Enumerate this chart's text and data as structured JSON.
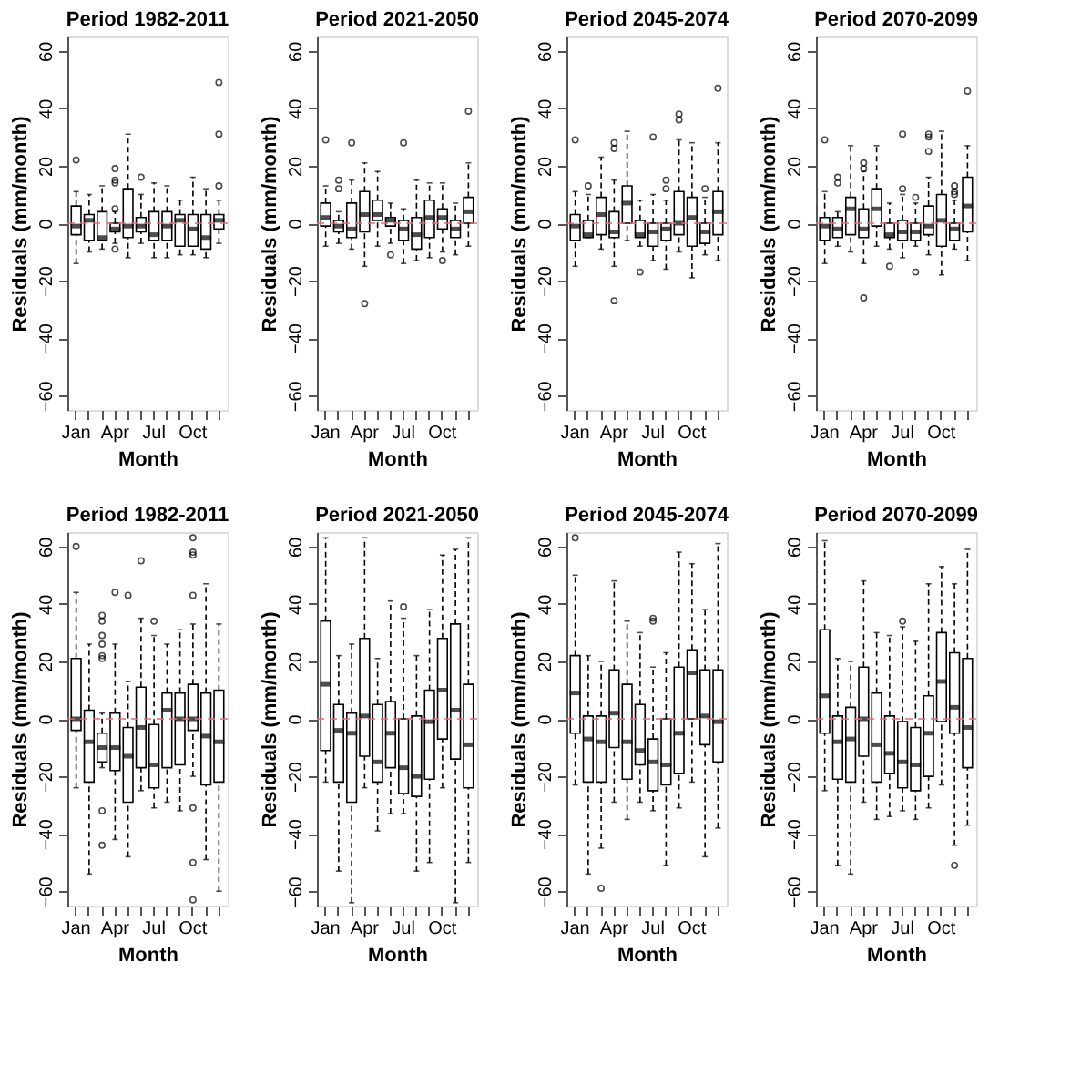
{
  "chart_data": [
    {
      "type": "box",
      "title": "Period 1982-2011",
      "xlabel": "Month",
      "ylabel": "Residuals (mm/month)",
      "categories": [
        "Jan",
        null,
        null,
        "Apr",
        null,
        null,
        "Jul",
        null,
        null,
        "Oct",
        null,
        null
      ],
      "ylim": [
        -65,
        65
      ],
      "yticks": [
        -60,
        -40,
        -20,
        0,
        20,
        40,
        60
      ],
      "ref_lines": [
        {
          "axis": "y",
          "value": 0,
          "color": "#e07070",
          "line_style": "dashed"
        }
      ],
      "boxes": [
        {
          "low": -14,
          "q1": -4,
          "median": -1,
          "q3": 6,
          "high": 11,
          "outliers": [
            22
          ]
        },
        {
          "low": -10,
          "q1": -6,
          "median": 1,
          "q3": 3,
          "high": 10
        },
        {
          "low": -9,
          "q1": -6,
          "median": -5,
          "q3": 4,
          "high": 13
        },
        {
          "low": -7,
          "q1": -3,
          "median": -2,
          "q3": 0,
          "high": 4,
          "outliers": [
            19,
            15,
            14,
            5,
            -9
          ]
        },
        {
          "low": -12,
          "q1": -5,
          "median": -1,
          "q3": 12,
          "high": 31
        },
        {
          "low": -7,
          "q1": -3,
          "median": -1,
          "q3": 2,
          "high": 10,
          "outliers": [
            16
          ]
        },
        {
          "low": -12,
          "q1": -6,
          "median": -4,
          "q3": 4,
          "high": 14
        },
        {
          "low": -12,
          "q1": -6,
          "median": -1,
          "q3": 4,
          "high": 13
        },
        {
          "low": -11,
          "q1": -8,
          "median": 1,
          "q3": 3,
          "high": 8
        },
        {
          "low": -11,
          "q1": -8,
          "median": -2,
          "q3": 3,
          "high": 16
        },
        {
          "low": -12,
          "q1": -9,
          "median": -5,
          "q3": 3,
          "high": 12
        },
        {
          "low": -7,
          "q1": -2,
          "median": 1,
          "q3": 3,
          "high": 8,
          "outliers": [
            49,
            31,
            13
          ]
        }
      ]
    },
    {
      "type": "box",
      "title": "Period 2021-2050",
      "xlabel": "Month",
      "ylabel": "Residuals (mm/month)",
      "categories": [
        "Jan",
        null,
        null,
        "Apr",
        null,
        null,
        "Jul",
        null,
        null,
        "Oct",
        null,
        null
      ],
      "ylim": [
        -65,
        65
      ],
      "yticks": [
        -60,
        -40,
        -20,
        0,
        20,
        40,
        60
      ],
      "ref_lines": [
        {
          "axis": "y",
          "value": 0,
          "color": "#e07070",
          "line_style": "dashed"
        }
      ],
      "boxes": [
        {
          "low": -8,
          "q1": -1,
          "median": 2,
          "q3": 7,
          "high": 13,
          "outliers": [
            29
          ]
        },
        {
          "low": -7,
          "q1": -3,
          "median": -1,
          "q3": 1,
          "high": 4,
          "outliers": [
            15,
            12
          ]
        },
        {
          "low": -9,
          "q1": -5,
          "median": -2,
          "q3": 7,
          "high": 15,
          "outliers": [
            28
          ]
        },
        {
          "low": -15,
          "q1": -3,
          "median": 3,
          "q3": 11,
          "high": 21,
          "outliers": [
            -28
          ]
        },
        {
          "low": -8,
          "q1": 1,
          "median": 3,
          "q3": 8,
          "high": 18
        },
        {
          "low": -7,
          "q1": -1,
          "median": 1,
          "q3": 2,
          "high": 7,
          "outliers": [
            -11
          ]
        },
        {
          "low": -14,
          "q1": -6,
          "median": -2,
          "q3": 1,
          "high": 5,
          "outliers": [
            28
          ]
        },
        {
          "low": -13,
          "q1": -9,
          "median": -4,
          "q3": 2,
          "high": 15
        },
        {
          "low": -12,
          "q1": -5,
          "median": 2,
          "q3": 8,
          "high": 14
        },
        {
          "low": -10,
          "q1": -2,
          "median": 2,
          "q3": 5,
          "high": 14,
          "outliers": [
            -13
          ]
        },
        {
          "low": -11,
          "q1": -5,
          "median": -2,
          "q3": 1,
          "high": 7
        },
        {
          "low": -8,
          "q1": 0,
          "median": 4,
          "q3": 9,
          "high": 21,
          "outliers": [
            39
          ]
        }
      ]
    },
    {
      "type": "box",
      "title": "Period 2045-2074",
      "xlabel": "Month",
      "ylabel": "Residuals (mm/month)",
      "categories": [
        "Jan",
        null,
        null,
        "Apr",
        null,
        null,
        "Jul",
        null,
        null,
        "Oct",
        null,
        null
      ],
      "ylim": [
        -65,
        65
      ],
      "yticks": [
        -60,
        -40,
        -20,
        0,
        20,
        40,
        60
      ],
      "ref_lines": [
        {
          "axis": "y",
          "value": 0,
          "color": "#e07070",
          "line_style": "dashed"
        }
      ],
      "boxes": [
        {
          "low": -15,
          "q1": -6,
          "median": -1,
          "q3": 3,
          "high": 11,
          "outliers": [
            29
          ]
        },
        {
          "low": -5,
          "q1": -5,
          "median": -4,
          "q3": 1,
          "high": 10,
          "outliers": [
            13
          ]
        },
        {
          "low": -9,
          "q1": -4,
          "median": 3,
          "q3": 9,
          "high": 23
        },
        {
          "low": -15,
          "q1": -5,
          "median": -3,
          "q3": 4,
          "high": 15,
          "outliers": [
            28,
            26,
            -27
          ]
        },
        {
          "low": -6,
          "q1": 0,
          "median": 7,
          "q3": 13,
          "high": 32
        },
        {
          "low": -8,
          "q1": -5,
          "median": -4,
          "q3": 1,
          "high": 8,
          "outliers": [
            -17
          ]
        },
        {
          "low": -13,
          "q1": -8,
          "median": -3,
          "q3": 0,
          "high": 10,
          "outliers": [
            30
          ]
        },
        {
          "low": -16,
          "q1": -6,
          "median": -2,
          "q3": 0,
          "high": 8,
          "outliers": [
            15,
            12
          ]
        },
        {
          "low": -10,
          "q1": -4,
          "median": 0,
          "q3": 11,
          "high": 29,
          "outliers": [
            38,
            36
          ]
        },
        {
          "low": -19,
          "q1": -8,
          "median": 2,
          "q3": 9,
          "high": 28
        },
        {
          "low": -11,
          "q1": -7,
          "median": -3,
          "q3": 0,
          "high": 9,
          "outliers": [
            12
          ]
        },
        {
          "low": -13,
          "q1": -4,
          "median": 4,
          "q3": 11,
          "high": 28,
          "outliers": [
            47
          ]
        }
      ]
    },
    {
      "type": "box",
      "title": "Period 2070-2099",
      "xlabel": "Month",
      "ylabel": "Residuals (mm/month)",
      "categories": [
        "Jan",
        null,
        null,
        "Apr",
        null,
        null,
        "Jul",
        null,
        null,
        "Oct",
        null,
        null
      ],
      "ylim": [
        -65,
        65
      ],
      "yticks": [
        -60,
        -40,
        -20,
        0,
        20,
        40,
        60
      ],
      "ref_lines": [
        {
          "axis": "y",
          "value": 0,
          "color": "#e07070",
          "line_style": "dashed"
        }
      ],
      "boxes": [
        {
          "low": -14,
          "q1": -6,
          "median": -1,
          "q3": 2,
          "high": 11,
          "outliers": [
            29
          ]
        },
        {
          "low": -8,
          "q1": -5,
          "median": -2,
          "q3": 2,
          "high": 4,
          "outliers": [
            16,
            14
          ]
        },
        {
          "low": -10,
          "q1": -4,
          "median": 5,
          "q3": 9,
          "high": 27
        },
        {
          "low": -14,
          "q1": -5,
          "median": -2,
          "q3": 5,
          "high": 18,
          "outliers": [
            21,
            19,
            -26
          ]
        },
        {
          "low": -8,
          "q1": -1,
          "median": 5,
          "q3": 12,
          "high": 27
        },
        {
          "low": -9,
          "q1": -5,
          "median": -4,
          "q3": 0,
          "high": 7,
          "outliers": [
            -15
          ]
        },
        {
          "low": -12,
          "q1": -6,
          "median": -3,
          "q3": 1,
          "high": 10,
          "outliers": [
            31,
            12
          ]
        },
        {
          "low": -8,
          "q1": -6,
          "median": -3,
          "q3": 0,
          "high": 7,
          "outliers": [
            9,
            -17
          ]
        },
        {
          "low": -11,
          "q1": -4,
          "median": -1,
          "q3": 6,
          "high": 16,
          "outliers": [
            31,
            30,
            25
          ]
        },
        {
          "low": -18,
          "q1": -8,
          "median": 1,
          "q3": 10,
          "high": 32
        },
        {
          "low": -9,
          "q1": -6,
          "median": -2,
          "q3": 0,
          "high": 8,
          "outliers": [
            13,
            11,
            10
          ]
        },
        {
          "low": -13,
          "q1": -3,
          "median": 6,
          "q3": 16,
          "high": 27,
          "outliers": [
            46
          ]
        }
      ]
    },
    {
      "type": "box",
      "title": "Period 1982-2011",
      "xlabel": "Month",
      "ylabel": "Residuals (mm/month)",
      "categories": [
        "Jan",
        null,
        null,
        "Apr",
        null,
        null,
        "Jul",
        null,
        null,
        "Oct",
        null,
        null
      ],
      "ylim": [
        -65,
        65
      ],
      "yticks": [
        -60,
        -40,
        -20,
        0,
        20,
        40,
        60
      ],
      "ref_lines": [
        {
          "axis": "y",
          "value": 0,
          "color": "#e07070",
          "line_style": "dashed"
        }
      ],
      "boxes": [
        {
          "low": -24,
          "q1": -4,
          "median": 0,
          "q3": 21,
          "high": 44,
          "outliers": [
            60
          ]
        },
        {
          "low": -54,
          "q1": -22,
          "median": -8,
          "q3": 3,
          "high": 26
        },
        {
          "low": -17,
          "q1": -15,
          "median": -10,
          "q3": -5,
          "high": 2,
          "outliers": [
            36,
            34,
            29,
            26,
            22,
            21,
            -32,
            -44
          ]
        },
        {
          "low": -42,
          "q1": -18,
          "median": -10,
          "q3": 2,
          "high": 26,
          "outliers": [
            44
          ]
        },
        {
          "low": -48,
          "q1": -29,
          "median": -13,
          "q3": -3,
          "high": 13,
          "outliers": [
            43
          ]
        },
        {
          "low": -25,
          "q1": -17,
          "median": -3,
          "q3": 11,
          "high": 35,
          "outliers": [
            55
          ]
        },
        {
          "low": -31,
          "q1": -24,
          "median": -16,
          "q3": -2,
          "high": 29,
          "outliers": [
            34
          ]
        },
        {
          "low": -29,
          "q1": -17,
          "median": 3,
          "q3": 9,
          "high": 26
        },
        {
          "low": -32,
          "q1": -16,
          "median": 0,
          "q3": 9,
          "high": 31
        },
        {
          "low": -20,
          "q1": -4,
          "median": 0,
          "q3": 12,
          "high": 33,
          "outliers": [
            63,
            58,
            57,
            43,
            -31,
            -50,
            -63
          ]
        },
        {
          "low": -49,
          "q1": -23,
          "median": -6,
          "q3": 9,
          "high": 47
        },
        {
          "low": -60,
          "q1": -22,
          "median": -8,
          "q3": 10,
          "high": 33
        }
      ]
    },
    {
      "type": "box",
      "title": "Period 2021-2050",
      "xlabel": "Month",
      "ylabel": "Residuals (mm/month)",
      "categories": [
        "Jan",
        null,
        null,
        "Apr",
        null,
        null,
        "Jul",
        null,
        null,
        "Oct",
        null,
        null
      ],
      "ylim": [
        -65,
        65
      ],
      "yticks": [
        -60,
        -40,
        -20,
        0,
        20,
        40,
        60
      ],
      "ref_lines": [
        {
          "axis": "y",
          "value": 0,
          "color": "#e07070",
          "line_style": "dashed"
        }
      ],
      "boxes": [
        {
          "low": -22,
          "q1": -11,
          "median": 12,
          "q3": 34,
          "high": 63
        },
        {
          "low": -53,
          "q1": -22,
          "median": -4,
          "q3": 5,
          "high": 22
        },
        {
          "low": -64,
          "q1": -29,
          "median": -5,
          "q3": 2,
          "high": 26
        },
        {
          "low": -24,
          "q1": -13,
          "median": 1,
          "q3": 28,
          "high": 63
        },
        {
          "low": -39,
          "q1": -22,
          "median": -15,
          "q3": 5,
          "high": 21
        },
        {
          "low": -33,
          "q1": -17,
          "median": -5,
          "q3": 6,
          "high": 41
        },
        {
          "low": -33,
          "q1": -26,
          "median": -17,
          "q3": 0,
          "high": 35,
          "outliers": [
            39
          ]
        },
        {
          "low": -53,
          "q1": -27,
          "median": -20,
          "q3": 1,
          "high": 22
        },
        {
          "low": -50,
          "q1": -21,
          "median": -1,
          "q3": 10,
          "high": 38
        },
        {
          "low": -24,
          "q1": -7,
          "median": 10,
          "q3": 28,
          "high": 57
        },
        {
          "low": -64,
          "q1": -14,
          "median": 3,
          "q3": 33,
          "high": 59
        },
        {
          "low": -50,
          "q1": -24,
          "median": -9,
          "q3": 12,
          "high": 63
        }
      ]
    },
    {
      "type": "box",
      "title": "Period 2045-2074",
      "xlabel": "Month",
      "ylabel": "Residuals (mm/month)",
      "categories": [
        "Jan",
        null,
        null,
        "Apr",
        null,
        null,
        "Jul",
        null,
        null,
        "Oct",
        null,
        null
      ],
      "ylim": [
        -65,
        65
      ],
      "yticks": [
        -60,
        -40,
        -20,
        0,
        20,
        40,
        60
      ],
      "ref_lines": [
        {
          "axis": "y",
          "value": 0,
          "color": "#e07070",
          "line_style": "dashed"
        }
      ],
      "boxes": [
        {
          "low": -23,
          "q1": -5,
          "median": 9,
          "q3": 22,
          "high": 50,
          "outliers": [
            63
          ]
        },
        {
          "low": -54,
          "q1": -22,
          "median": -7,
          "q3": 1,
          "high": 22
        },
        {
          "low": -45,
          "q1": -22,
          "median": -8,
          "q3": 1,
          "high": 20,
          "outliers": [
            -59
          ]
        },
        {
          "low": -29,
          "q1": -10,
          "median": 2,
          "q3": 17,
          "high": 48
        },
        {
          "low": -35,
          "q1": -21,
          "median": -8,
          "q3": 12,
          "high": 34
        },
        {
          "low": -29,
          "q1": -16,
          "median": -11,
          "q3": 5,
          "high": 30
        },
        {
          "low": -32,
          "q1": -25,
          "median": -15,
          "q3": -7,
          "high": 18,
          "outliers": [
            35,
            34
          ]
        },
        {
          "low": -51,
          "q1": -23,
          "median": -16,
          "q3": 0,
          "high": 23
        },
        {
          "low": -31,
          "q1": -19,
          "median": -5,
          "q3": 18,
          "high": 58
        },
        {
          "low": -22,
          "q1": 0,
          "median": 16,
          "q3": 24,
          "high": 54
        },
        {
          "low": -48,
          "q1": -9,
          "median": 1,
          "q3": 17,
          "high": 38
        },
        {
          "low": -38,
          "q1": -15,
          "median": -1,
          "q3": 17,
          "high": 61
        }
      ]
    },
    {
      "type": "box",
      "title": "Period 2070-2099",
      "xlabel": "Month",
      "ylabel": "Residuals (mm/month)",
      "categories": [
        "Jan",
        null,
        null,
        "Apr",
        null,
        null,
        "Jul",
        null,
        null,
        "Oct",
        null,
        null
      ],
      "ylim": [
        -65,
        65
      ],
      "yticks": [
        -60,
        -40,
        -20,
        0,
        20,
        40,
        60
      ],
      "ref_lines": [
        {
          "axis": "y",
          "value": 0,
          "color": "#e07070",
          "line_style": "dashed"
        }
      ],
      "boxes": [
        {
          "low": -25,
          "q1": -5,
          "median": 8,
          "q3": 31,
          "high": 62
        },
        {
          "low": -51,
          "q1": -21,
          "median": -8,
          "q3": 1,
          "high": 21
        },
        {
          "low": -54,
          "q1": -22,
          "median": -7,
          "q3": 4,
          "high": 20
        },
        {
          "low": -29,
          "q1": -13,
          "median": 0,
          "q3": 18,
          "high": 48
        },
        {
          "low": -35,
          "q1": -22,
          "median": -9,
          "q3": 9,
          "high": 30
        },
        {
          "low": -34,
          "q1": -19,
          "median": -12,
          "q3": 1,
          "high": 29
        },
        {
          "low": -32,
          "q1": -24,
          "median": -15,
          "q3": -1,
          "high": 32,
          "outliers": [
            34
          ]
        },
        {
          "low": -35,
          "q1": -25,
          "median": -16,
          "q3": -3,
          "high": 27
        },
        {
          "low": -31,
          "q1": -20,
          "median": -5,
          "q3": 8,
          "high": 47
        },
        {
          "low": -23,
          "q1": -1,
          "median": 13,
          "q3": 30,
          "high": 53
        },
        {
          "low": -44,
          "q1": -5,
          "median": 4,
          "q3": 23,
          "high": 47,
          "outliers": [
            -51
          ]
        },
        {
          "low": -37,
          "q1": -17,
          "median": -3,
          "q3": 21,
          "high": 59
        }
      ]
    }
  ]
}
